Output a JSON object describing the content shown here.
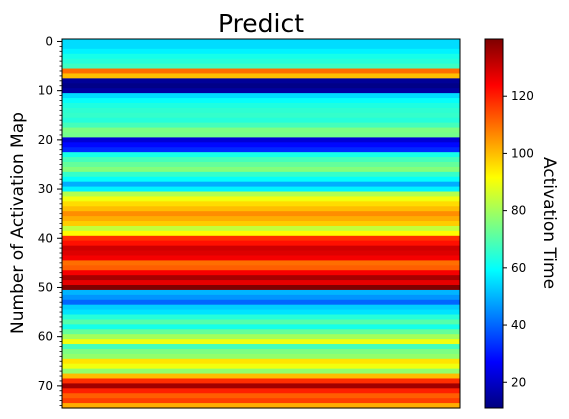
{
  "chart_data": {
    "type": "heatmap",
    "title": "Predict",
    "ylabel": "Number of Activation Map",
    "colorbar_label": "Activation Time",
    "colormap": "jet",
    "y_ticks": [
      0,
      10,
      20,
      30,
      40,
      50,
      60,
      70
    ],
    "ylim": [
      0,
      74
    ],
    "colorbar_ticks": [
      20,
      40,
      60,
      80,
      100,
      120
    ],
    "value_range": [
      11,
      140
    ],
    "values": [
      55,
      55,
      58,
      62,
      64,
      67,
      110,
      100,
      14,
      12,
      15,
      55,
      60,
      63,
      65,
      66,
      64,
      68,
      75,
      74,
      22,
      28,
      32,
      62,
      68,
      72,
      76,
      66,
      60,
      49,
      58,
      82,
      90,
      96,
      100,
      106,
      102,
      98,
      84,
      92,
      118,
      122,
      130,
      128,
      125,
      110,
      112,
      125,
      135,
      127,
      142,
      50,
      46,
      40,
      53,
      56,
      64,
      70,
      62,
      72,
      80,
      90,
      68,
      75,
      78,
      95,
      90,
      78,
      100,
      118,
      136,
      120,
      112,
      116,
      102
    ]
  }
}
